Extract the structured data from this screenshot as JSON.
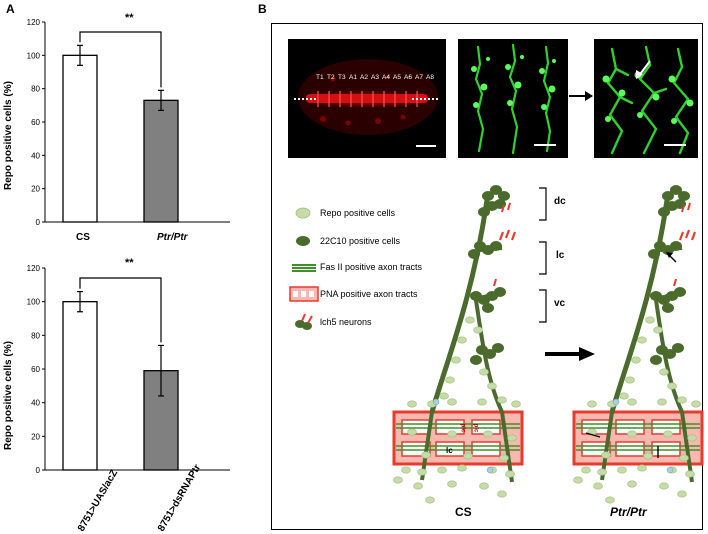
{
  "panel_a": {
    "letter": "A",
    "charts": [
      {
        "type": "bar",
        "ylabel": "Repo positive cells (%)",
        "ylim": [
          0,
          120
        ],
        "yticks": [
          "0",
          "20",
          "40",
          "60",
          "80",
          "100",
          "120"
        ],
        "categories": [
          "CS",
          "Ptr/Ptr"
        ],
        "values": [
          100,
          73
        ],
        "errors": [
          6,
          6
        ],
        "significance": "**"
      },
      {
        "type": "bar",
        "ylabel": "Repo positive cells (%)",
        "ylim": [
          0,
          120
        ],
        "yticks": [
          "0",
          "20",
          "40",
          "60",
          "80",
          "100",
          "120"
        ],
        "categories": [
          "8751>UAS/acZ",
          "8751>dsRNAPtr"
        ],
        "values": [
          100,
          59
        ],
        "errors": [
          6,
          15
        ],
        "significance": "**"
      }
    ]
  },
  "panel_b": {
    "letter": "B",
    "segments": [
      "T1",
      "T2",
      "T3",
      "A1",
      "A2",
      "A3",
      "A4",
      "A5",
      "A6",
      "A7",
      "A8"
    ],
    "legend": [
      {
        "label": "Repo positive cells",
        "icon": "light-green-cell-icon"
      },
      {
        "label": "22C10 positive cells",
        "icon": "dark-green-cell-icon"
      },
      {
        "label": "Fas II positive axon tracts",
        "icon": "green-tract-icon"
      },
      {
        "label": "PNA positive axon tracts",
        "icon": "red-tract-icon"
      },
      {
        "label": "lch5 neurons",
        "icon": "neuron-icon"
      }
    ],
    "braces": [
      "dc",
      "lc",
      "vc"
    ],
    "conditions": [
      "CS",
      "Ptr/Ptr"
    ],
    "tract_labels": [
      "lc",
      "plc"
    ],
    "colors": {
      "dark_green": "#4a6b2c",
      "light_green": "#c5dba8",
      "red": "#e63b2e",
      "tract_green": "#3f8f2a"
    }
  }
}
